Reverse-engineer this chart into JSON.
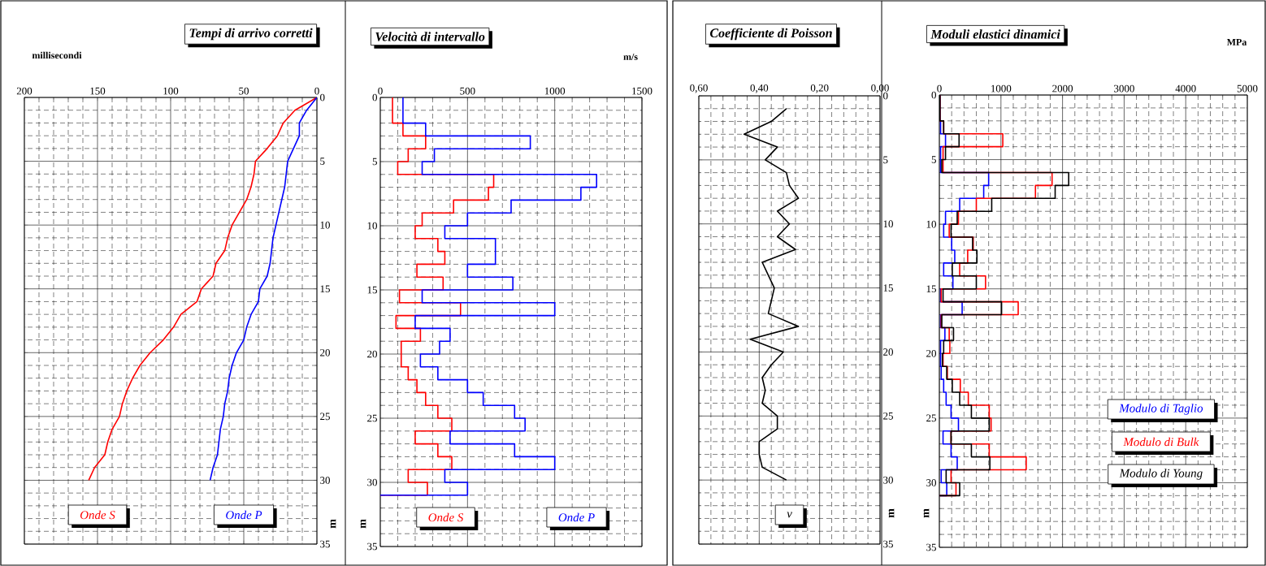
{
  "chart_data": [
    {
      "type": "line",
      "orientation": "horizontal",
      "title": "Tempi di arrivo corretti",
      "xlabel": "millisecondi",
      "ylabel": "m",
      "xlim": [
        200,
        0
      ],
      "xticks": [
        200,
        150,
        100,
        50,
        0
      ],
      "ylim": [
        35,
        0
      ],
      "yticks": [
        0,
        5,
        10,
        15,
        20,
        25,
        30,
        35
      ],
      "grid": true,
      "legend": "bottom",
      "series": [
        {
          "name": "Onde S",
          "color": "#ff0000",
          "x": [
            0,
            1,
            2,
            3,
            4,
            5,
            6,
            7,
            8,
            9,
            10,
            11,
            12,
            13,
            14,
            15,
            16,
            17,
            18,
            19,
            20,
            21,
            22,
            23,
            24,
            25,
            26,
            27,
            28,
            29,
            30
          ],
          "values": [
            0,
            15,
            23,
            27,
            34,
            42,
            43,
            45,
            48,
            53,
            58,
            61,
            63,
            69,
            71,
            79,
            82,
            93,
            98,
            105,
            114,
            121,
            126,
            130,
            133,
            135,
            140,
            143,
            145,
            152,
            156
          ]
        },
        {
          "name": "Onde P",
          "color": "#0000ff",
          "x": [
            0,
            1,
            2,
            3,
            4,
            5,
            6,
            7,
            8,
            9,
            10,
            11,
            12,
            13,
            14,
            15,
            16,
            17,
            18,
            19,
            20,
            21,
            22,
            23,
            24,
            25,
            26,
            27,
            28,
            29,
            30
          ],
          "values": [
            0,
            7,
            12,
            12,
            16,
            20,
            21,
            22,
            24,
            26,
            28,
            30,
            31,
            32,
            34,
            39,
            40,
            45,
            48,
            50,
            55,
            58,
            60,
            61,
            63,
            64,
            66,
            67,
            68,
            71,
            73
          ]
        }
      ]
    },
    {
      "type": "step",
      "orientation": "horizontal",
      "title": "Velocità di intervallo",
      "xlabel": "m/s",
      "ylabel": "m",
      "xlim": [
        0,
        1500
      ],
      "xticks": [
        0,
        500,
        1000,
        1500
      ],
      "ylim": [
        35,
        0
      ],
      "yticks": [
        0,
        5,
        10,
        15,
        20,
        25,
        30,
        35
      ],
      "grid": true,
      "legend": "bottom",
      "series": [
        {
          "name": "Onde S",
          "color": "#ff0000",
          "x": [
            0,
            2,
            3,
            4,
            5,
            6,
            7,
            8,
            9,
            10,
            11,
            12,
            13,
            14,
            15,
            16,
            17,
            18,
            19,
            20,
            21,
            22,
            23,
            24,
            25,
            26,
            27,
            28,
            29,
            30,
            31
          ],
          "values": [
            70,
            130,
            260,
            160,
            100,
            650,
            620,
            420,
            240,
            200,
            330,
            370,
            210,
            360,
            110,
            460,
            90,
            230,
            120,
            120,
            160,
            210,
            260,
            330,
            410,
            200,
            330,
            410,
            160,
            270,
            0
          ]
        },
        {
          "name": "Onde P",
          "color": "#0000ff",
          "x": [
            0,
            2,
            3,
            4,
            5,
            6,
            7,
            8,
            9,
            10,
            11,
            12,
            13,
            14,
            15,
            16,
            17,
            18,
            19,
            20,
            21,
            22,
            23,
            24,
            25,
            26,
            27,
            28,
            29,
            30,
            31
          ],
          "values": [
            130,
            260,
            860,
            310,
            240,
            1240,
            1150,
            750,
            500,
            370,
            660,
            660,
            500,
            760,
            240,
            1000,
            200,
            400,
            340,
            230,
            330,
            500,
            590,
            770,
            830,
            400,
            770,
            1000,
            370,
            500,
            0
          ]
        }
      ]
    },
    {
      "type": "line",
      "orientation": "horizontal",
      "title": "Coefficiente di Poisson",
      "ylabel": "m",
      "xlim": [
        0.6,
        0
      ],
      "xticks": [
        {
          "value": 0.6,
          "label": "0,60"
        },
        {
          "value": 0.4,
          "label": "0,40"
        },
        {
          "value": 0.2,
          "label": "0,20"
        },
        {
          "value": 0,
          "label": "0,00"
        }
      ],
      "ylim": [
        35,
        0
      ],
      "yticks": [
        0,
        5,
        10,
        15,
        20,
        25,
        30,
        35
      ],
      "grid": true,
      "legend": "bottom",
      "series": [
        {
          "name": "ν",
          "color": "#000000",
          "x": [
            1,
            2,
            3,
            4,
            5,
            6,
            7,
            8,
            9,
            10,
            11,
            12,
            13,
            14,
            15,
            16,
            17,
            18,
            19,
            20,
            21,
            22,
            23,
            24,
            25,
            26,
            27,
            28,
            29,
            30
          ],
          "values": [
            0.31,
            0.36,
            0.45,
            0.34,
            0.38,
            0.31,
            0.3,
            0.27,
            0.34,
            0.3,
            0.34,
            0.28,
            0.39,
            0.37,
            0.35,
            0.36,
            0.37,
            0.27,
            0.43,
            0.32,
            0.36,
            0.39,
            0.38,
            0.39,
            0.34,
            0.34,
            0.4,
            0.4,
            0.39,
            0.31
          ]
        }
      ]
    },
    {
      "type": "step",
      "orientation": "horizontal",
      "title": "Moduli elastici dinamici",
      "xlabel": "MPa",
      "ylabel": "m",
      "xlim": [
        0,
        5000
      ],
      "xticks": [
        0,
        1000,
        2000,
        3000,
        4000,
        5000
      ],
      "ylim": [
        35,
        0
      ],
      "yticks": [
        0,
        5,
        10,
        15,
        20,
        25,
        30,
        35
      ],
      "grid": true,
      "legend": "bottom right",
      "series": [
        {
          "name": "Modulo di Taglio",
          "color": "#0000ff",
          "x": [
            0,
            2,
            3,
            4,
            5,
            6,
            7,
            8,
            9,
            10,
            11,
            12,
            13,
            14,
            15,
            16,
            17,
            18,
            19,
            20,
            21,
            22,
            23,
            24,
            25,
            26,
            27,
            28,
            29,
            30,
            31
          ],
          "values": [
            10,
            20,
            100,
            20,
            20,
            800,
            720,
            330,
            100,
            70,
            200,
            250,
            70,
            220,
            20,
            370,
            20,
            90,
            20,
            20,
            30,
            70,
            110,
            190,
            310,
            60,
            190,
            290,
            30,
            120,
            0
          ]
        },
        {
          "name": "Modulo di Bulk",
          "color": "#ff0000",
          "x": [
            0,
            2,
            3,
            4,
            5,
            6,
            7,
            8,
            9,
            10,
            11,
            12,
            13,
            14,
            15,
            16,
            17,
            18,
            19,
            20,
            21,
            22,
            23,
            24,
            25,
            26,
            27,
            28,
            29,
            30,
            31
          ],
          "values": [
            10,
            70,
            1030,
            60,
            60,
            1830,
            1560,
            600,
            310,
            160,
            550,
            460,
            330,
            750,
            30,
            1280,
            30,
            160,
            170,
            60,
            130,
            340,
            470,
            810,
            840,
            190,
            810,
            1410,
            190,
            270,
            0
          ]
        },
        {
          "name": "Modulo di Young",
          "color": "#000000",
          "x": [
            0,
            2,
            3,
            4,
            5,
            6,
            7,
            8,
            9,
            10,
            11,
            12,
            13,
            14,
            15,
            16,
            17,
            18,
            19,
            20,
            21,
            22,
            23,
            24,
            25,
            26,
            27,
            28,
            29,
            30,
            31
          ],
          "values": [
            10,
            70,
            320,
            100,
            40,
            2100,
            1880,
            850,
            290,
            190,
            540,
            610,
            210,
            600,
            60,
            1010,
            40,
            230,
            70,
            50,
            120,
            210,
            330,
            520,
            810,
            190,
            520,
            820,
            110,
            330,
            0
          ]
        }
      ]
    }
  ]
}
